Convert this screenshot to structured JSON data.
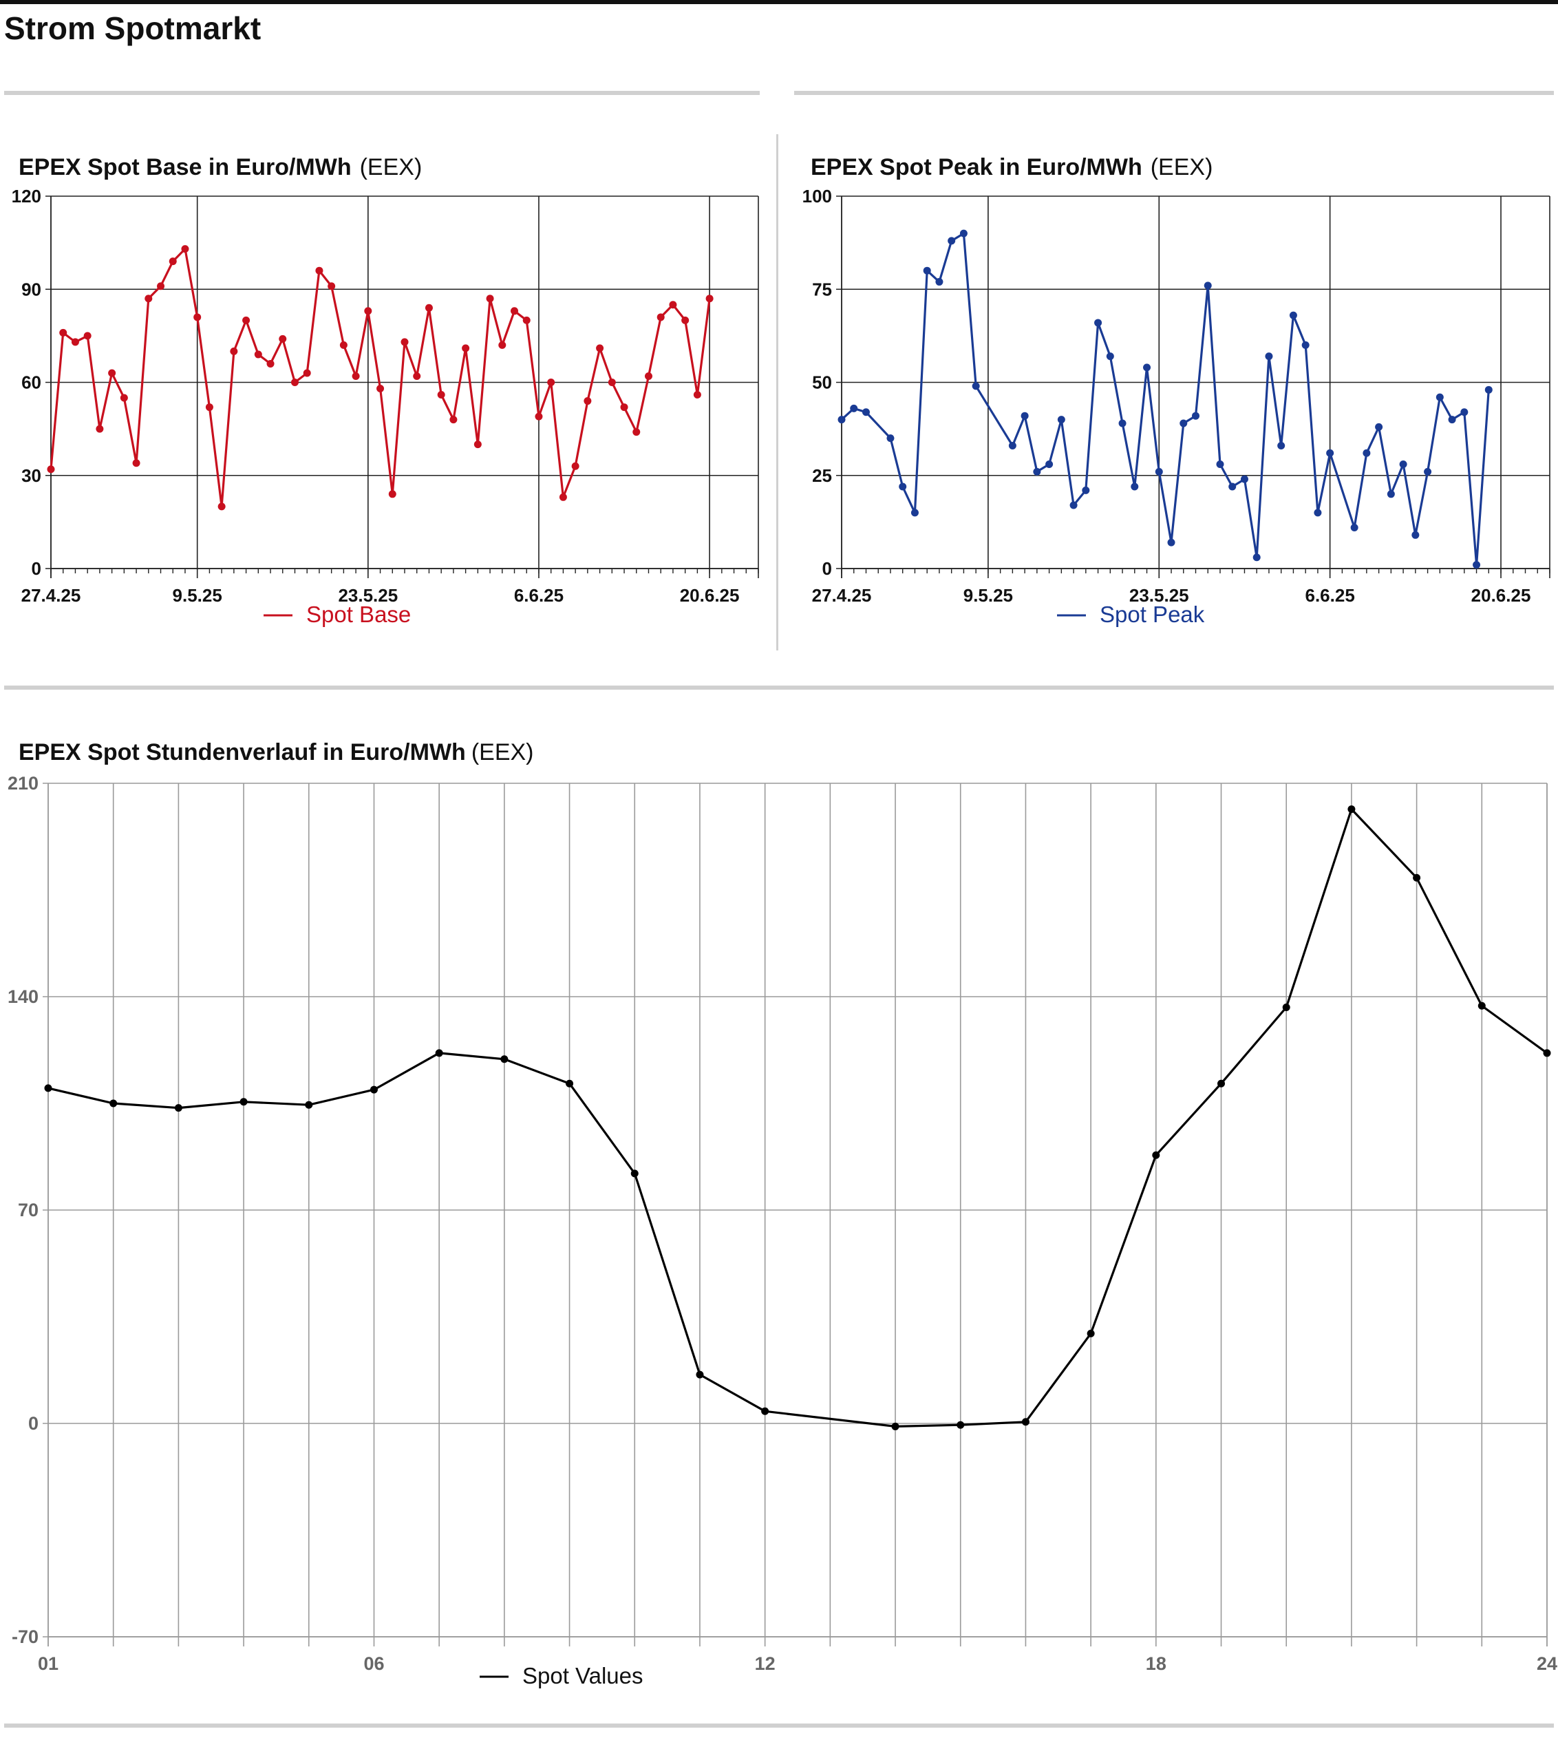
{
  "page": {
    "title": "Strom Spotmarkt"
  },
  "chart_data": [
    {
      "id": "base",
      "type": "line",
      "title": "EPEX Spot Base in Euro/MWh",
      "source": "(EEX)",
      "color": "#c8101e",
      "ylim": [
        0,
        120
      ],
      "yticks": [
        0,
        30,
        60,
        90,
        120
      ],
      "x_range": [
        "2025-04-27",
        "2025-06-24"
      ],
      "xticks": [
        {
          "date": "2025-04-27",
          "label": "27.4.25"
        },
        {
          "date": "2025-05-09",
          "label": "9.5.25"
        },
        {
          "date": "2025-05-23",
          "label": "23.5.25"
        },
        {
          "date": "2025-06-06",
          "label": "6.6.25"
        },
        {
          "date": "2025-06-20",
          "label": "20.6.25"
        }
      ],
      "grid": true,
      "legend": "bottom",
      "series": [
        {
          "name": "Spot Base",
          "points": [
            {
              "x": "2025-04-27",
              "y": 32
            },
            {
              "x": "2025-04-28",
              "y": 76
            },
            {
              "x": "2025-04-29",
              "y": 73
            },
            {
              "x": "2025-04-30",
              "y": 75
            },
            {
              "x": "2025-05-01",
              "y": 45
            },
            {
              "x": "2025-05-02",
              "y": 63
            },
            {
              "x": "2025-05-03",
              "y": 55
            },
            {
              "x": "2025-05-04",
              "y": 34
            },
            {
              "x": "2025-05-05",
              "y": 87
            },
            {
              "x": "2025-05-06",
              "y": 91
            },
            {
              "x": "2025-05-07",
              "y": 99
            },
            {
              "x": "2025-05-08",
              "y": 103
            },
            {
              "x": "2025-05-09",
              "y": 81
            },
            {
              "x": "2025-05-10",
              "y": 52
            },
            {
              "x": "2025-05-11",
              "y": 20
            },
            {
              "x": "2025-05-12",
              "y": 70
            },
            {
              "x": "2025-05-13",
              "y": 80
            },
            {
              "x": "2025-05-14",
              "y": 69
            },
            {
              "x": "2025-05-15",
              "y": 66
            },
            {
              "x": "2025-05-16",
              "y": 74
            },
            {
              "x": "2025-05-17",
              "y": 60
            },
            {
              "x": "2025-05-18",
              "y": 63
            },
            {
              "x": "2025-05-19",
              "y": 96
            },
            {
              "x": "2025-05-20",
              "y": 91
            },
            {
              "x": "2025-05-21",
              "y": 72
            },
            {
              "x": "2025-05-22",
              "y": 62
            },
            {
              "x": "2025-05-23",
              "y": 83
            },
            {
              "x": "2025-05-24",
              "y": 58
            },
            {
              "x": "2025-05-25",
              "y": 24
            },
            {
              "x": "2025-05-26",
              "y": 73
            },
            {
              "x": "2025-05-27",
              "y": 62
            },
            {
              "x": "2025-05-28",
              "y": 84
            },
            {
              "x": "2025-05-29",
              "y": 56
            },
            {
              "x": "2025-05-30",
              "y": 48
            },
            {
              "x": "2025-05-31",
              "y": 71
            },
            {
              "x": "2025-06-01",
              "y": 40
            },
            {
              "x": "2025-06-02",
              "y": 87
            },
            {
              "x": "2025-06-03",
              "y": 72
            },
            {
              "x": "2025-06-04",
              "y": 83
            },
            {
              "x": "2025-06-05",
              "y": 80
            },
            {
              "x": "2025-06-06",
              "y": 49
            },
            {
              "x": "2025-06-07",
              "y": 60
            },
            {
              "x": "2025-06-08",
              "y": 23
            },
            {
              "x": "2025-06-09",
              "y": 33
            },
            {
              "x": "2025-06-10",
              "y": 54
            },
            {
              "x": "2025-06-11",
              "y": 71
            },
            {
              "x": "2025-06-12",
              "y": 60
            },
            {
              "x": "2025-06-13",
              "y": 52
            },
            {
              "x": "2025-06-14",
              "y": 44
            },
            {
              "x": "2025-06-15",
              "y": 62
            },
            {
              "x": "2025-06-16",
              "y": 81
            },
            {
              "x": "2025-06-17",
              "y": 85
            },
            {
              "x": "2025-06-18",
              "y": 80
            },
            {
              "x": "2025-06-19",
              "y": 56
            },
            {
              "x": "2025-06-20",
              "y": 87
            }
          ]
        }
      ]
    },
    {
      "id": "peak",
      "type": "line",
      "title": "EPEX Spot Peak in Euro/MWh",
      "source": "(EEX)",
      "color": "#1a3b94",
      "ylim": [
        0,
        100
      ],
      "yticks": [
        0,
        25,
        50,
        75,
        100
      ],
      "x_range": [
        "2025-04-27",
        "2025-06-24"
      ],
      "xticks": [
        {
          "date": "2025-04-27",
          "label": "27.4.25"
        },
        {
          "date": "2025-05-09",
          "label": "9.5.25"
        },
        {
          "date": "2025-05-23",
          "label": "23.5.25"
        },
        {
          "date": "2025-06-06",
          "label": "6.6.25"
        },
        {
          "date": "2025-06-20",
          "label": "20.6.25"
        }
      ],
      "grid": true,
      "legend": "bottom",
      "series": [
        {
          "name": "Spot Peak",
          "points": [
            {
              "x": "2025-04-27",
              "y": 40
            },
            {
              "x": "2025-04-28",
              "y": 43
            },
            {
              "x": "2025-04-29",
              "y": 42
            },
            {
              "x": "2025-05-01",
              "y": 35
            },
            {
              "x": "2025-05-02",
              "y": 22
            },
            {
              "x": "2025-05-03",
              "y": 15
            },
            {
              "x": "2025-05-04",
              "y": 80
            },
            {
              "x": "2025-05-05",
              "y": 77
            },
            {
              "x": "2025-05-06",
              "y": 88
            },
            {
              "x": "2025-05-07",
              "y": 90
            },
            {
              "x": "2025-05-08",
              "y": 49
            },
            {
              "x": "2025-05-11",
              "y": 33
            },
            {
              "x": "2025-05-12",
              "y": 41
            },
            {
              "x": "2025-05-13",
              "y": 26
            },
            {
              "x": "2025-05-14",
              "y": 28
            },
            {
              "x": "2025-05-15",
              "y": 40
            },
            {
              "x": "2025-05-16",
              "y": 17
            },
            {
              "x": "2025-05-17",
              "y": 21
            },
            {
              "x": "2025-05-18",
              "y": 66
            },
            {
              "x": "2025-05-19",
              "y": 57
            },
            {
              "x": "2025-05-20",
              "y": 39
            },
            {
              "x": "2025-05-21",
              "y": 22
            },
            {
              "x": "2025-05-22",
              "y": 54
            },
            {
              "x": "2025-05-23",
              "y": 26
            },
            {
              "x": "2025-05-24",
              "y": 7
            },
            {
              "x": "2025-05-25",
              "y": 39
            },
            {
              "x": "2025-05-26",
              "y": 41
            },
            {
              "x": "2025-05-27",
              "y": 76
            },
            {
              "x": "2025-05-28",
              "y": 28
            },
            {
              "x": "2025-05-29",
              "y": 22
            },
            {
              "x": "2025-05-30",
              "y": 24
            },
            {
              "x": "2025-05-31",
              "y": 3
            },
            {
              "x": "2025-06-01",
              "y": 57
            },
            {
              "x": "2025-06-02",
              "y": 33
            },
            {
              "x": "2025-06-03",
              "y": 68
            },
            {
              "x": "2025-06-04",
              "y": 60
            },
            {
              "x": "2025-06-05",
              "y": 15
            },
            {
              "x": "2025-06-06",
              "y": 31
            },
            {
              "x": "2025-06-08",
              "y": 11
            },
            {
              "x": "2025-06-09",
              "y": 31
            },
            {
              "x": "2025-06-10",
              "y": 38
            },
            {
              "x": "2025-06-11",
              "y": 20
            },
            {
              "x": "2025-06-12",
              "y": 28
            },
            {
              "x": "2025-06-13",
              "y": 9
            },
            {
              "x": "2025-06-14",
              "y": 26
            },
            {
              "x": "2025-06-15",
              "y": 46
            },
            {
              "x": "2025-06-16",
              "y": 40
            },
            {
              "x": "2025-06-17",
              "y": 42
            },
            {
              "x": "2025-06-18",
              "y": 1
            },
            {
              "x": "2025-06-19",
              "y": 48
            }
          ]
        }
      ]
    },
    {
      "id": "hourly",
      "type": "line",
      "title": "EPEX Spot Stundenverlauf in Euro/MWh",
      "source": "(EEX)",
      "color": "#000000",
      "ylim": [
        -70,
        210
      ],
      "yticks": [
        -70,
        0,
        70,
        140,
        210
      ],
      "xlim": [
        1,
        24
      ],
      "xticks": [
        {
          "x": 1,
          "label": "01"
        },
        {
          "x": 6,
          "label": "06"
        },
        {
          "x": 12,
          "label": "12"
        },
        {
          "x": 18,
          "label": "18"
        },
        {
          "x": 24,
          "label": "24"
        }
      ],
      "grid": true,
      "legend": "bottom",
      "series": [
        {
          "name": "Spot Values",
          "x": [
            1,
            2,
            3,
            4,
            5,
            6,
            7,
            8,
            9,
            10,
            11,
            12,
            14,
            15,
            16,
            17,
            18,
            19,
            20,
            21,
            22,
            23,
            24
          ],
          "values": [
            110,
            105,
            103.5,
            105.5,
            104.5,
            109.5,
            121.5,
            119.5,
            111.5,
            82,
            16,
            4,
            -1,
            -0.5,
            0.5,
            29.5,
            88,
            111.5,
            136.5,
            201.5,
            179,
            137,
            121.5
          ]
        }
      ]
    }
  ]
}
